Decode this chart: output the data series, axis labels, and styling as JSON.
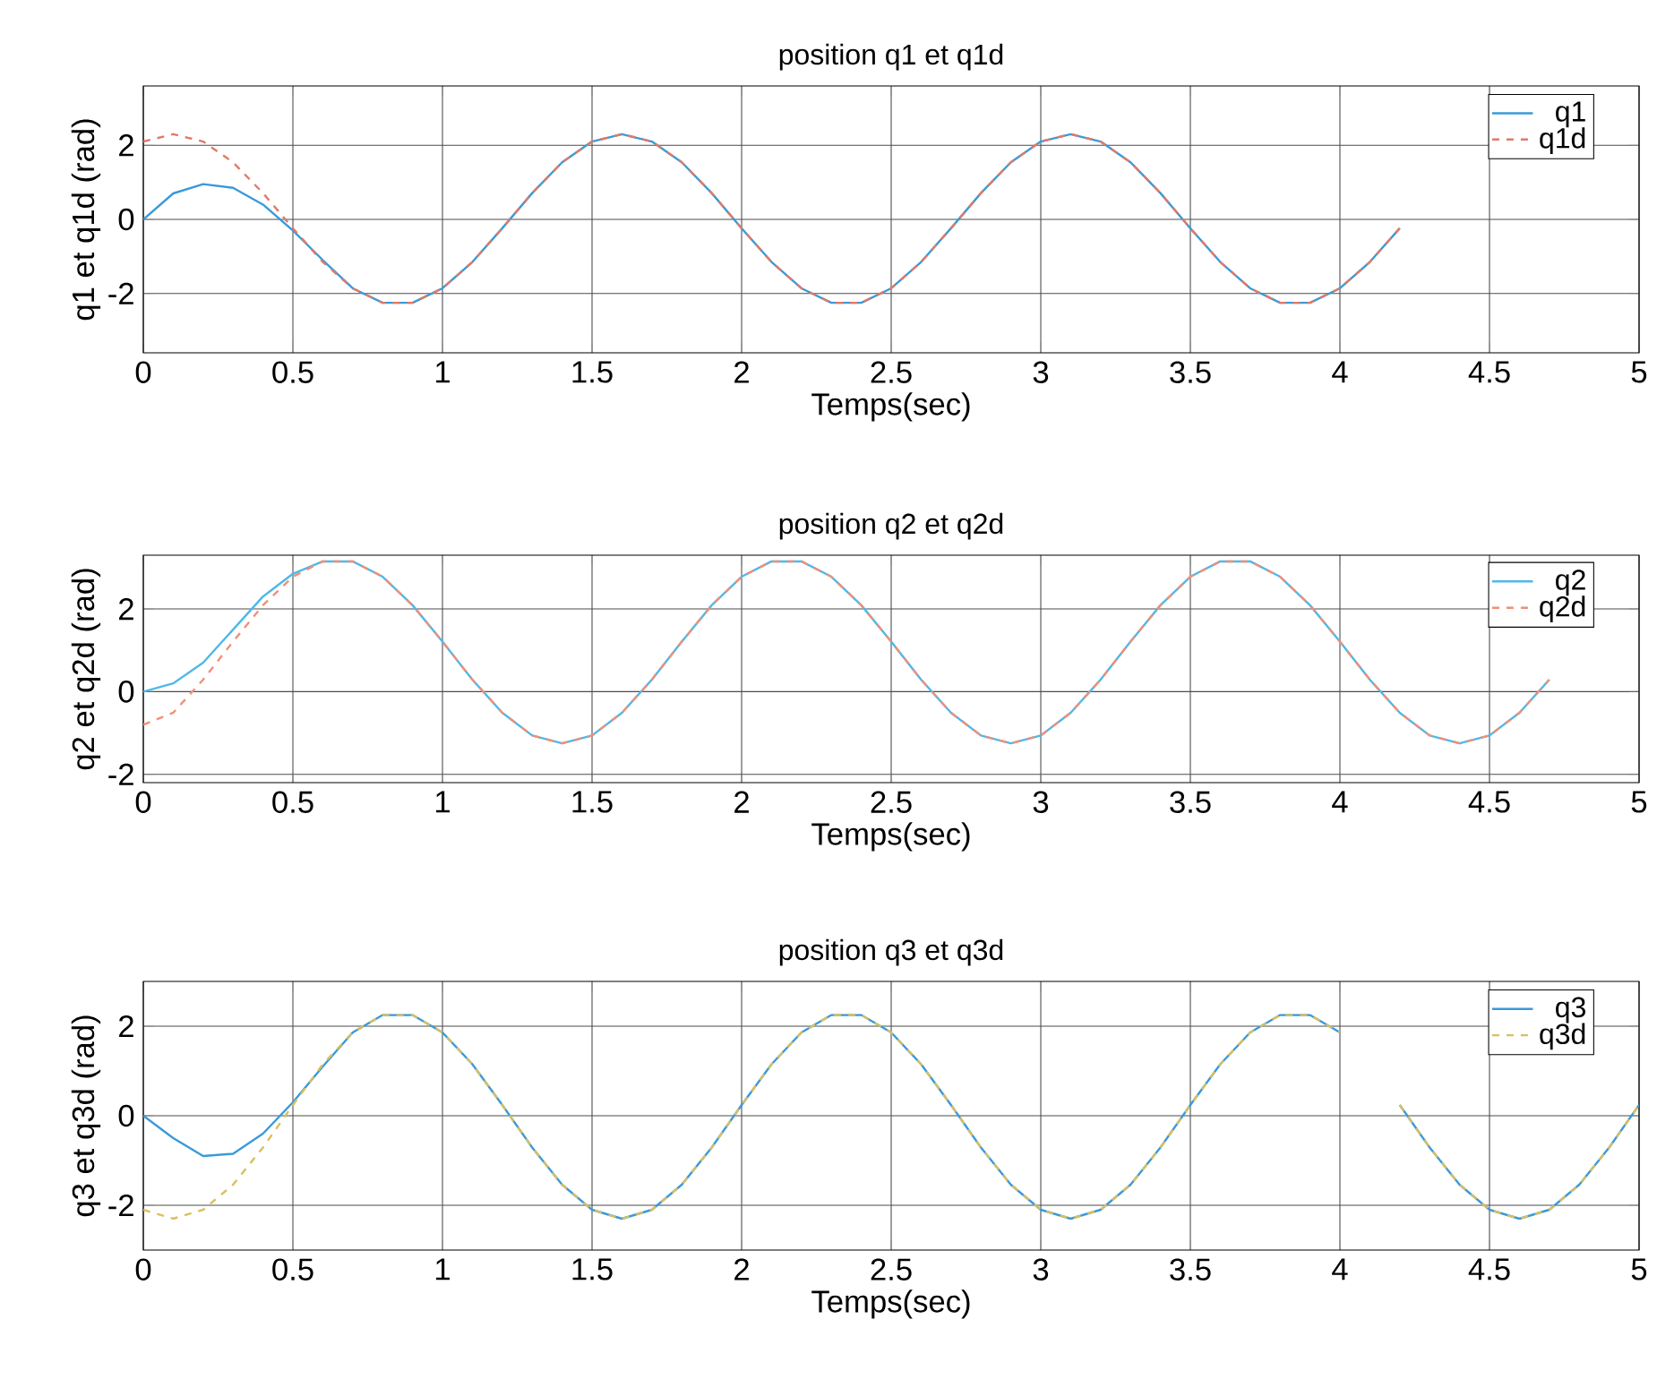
{
  "chart_data": [
    {
      "type": "line",
      "title": "position q1 et q1d",
      "xlabel": "Temps(sec)",
      "ylabel": "q1 et q1d (rad)",
      "xlim": [
        0,
        5
      ],
      "ylim": [
        -3.6,
        3.6
      ],
      "xticks": [
        0,
        0.5,
        1,
        1.5,
        2,
        2.5,
        3,
        3.5,
        4,
        4.5,
        5
      ],
      "yticks": [
        -2,
        0,
        2
      ],
      "grid": true,
      "legend": "top right",
      "x": [
        0,
        0.1,
        0.2,
        0.3,
        0.4,
        0.5,
        0.6,
        0.7,
        0.8,
        0.9,
        1.0,
        1.1,
        1.2,
        1.3,
        1.4,
        1.5,
        1.6,
        1.7,
        1.8,
        1.9,
        2.0,
        2.1,
        2.2,
        2.3,
        2.4,
        2.5,
        2.6,
        2.7,
        2.8,
        2.9,
        3.0,
        3.1,
        3.2,
        3.3,
        3.4,
        3.5,
        3.6,
        3.7,
        3.8,
        3.9,
        4.0,
        4.1,
        4.2
      ],
      "series": [
        {
          "name": "q1",
          "color": "#3a9ad9",
          "line_style": "solid",
          "values": [
            0,
            0.7,
            0.95,
            0.85,
            0.4,
            -0.3,
            -1.1,
            -1.86,
            -2.25,
            -2.25,
            -1.86,
            -1.15,
            -0.24,
            0.71,
            1.54,
            2.1,
            2.3,
            2.1,
            1.54,
            0.71,
            -0.24,
            -1.15,
            -1.86,
            -2.25,
            -2.25,
            -1.86,
            -1.15,
            -0.24,
            0.71,
            1.54,
            2.1,
            2.3,
            2.1,
            1.54,
            0.71,
            -0.24,
            -1.15,
            -1.86,
            -2.25,
            -2.25,
            -1.86,
            -1.15,
            -0.24
          ]
        },
        {
          "name": "q1d",
          "color": "#e07a6a",
          "line_style": "dashed",
          "values": [
            2.1,
            2.3,
            2.1,
            1.54,
            0.71,
            -0.24,
            -1.15,
            -1.86,
            -2.25,
            -2.25,
            -1.86,
            -1.15,
            -0.24,
            0.71,
            1.54,
            2.1,
            2.3,
            2.1,
            1.54,
            0.71,
            -0.24,
            -1.15,
            -1.86,
            -2.25,
            -2.25,
            -1.86,
            -1.15,
            -0.24,
            0.71,
            1.54,
            2.1,
            2.3,
            2.1,
            1.54,
            0.71,
            -0.24,
            -1.15,
            -1.86,
            -2.25,
            -2.25,
            -1.86,
            -1.15,
            -0.24
          ]
        }
      ]
    },
    {
      "type": "line",
      "title": "position q2 et q2d",
      "xlabel": "Temps(sec)",
      "ylabel": "q2 et q2d (rad)",
      "xlim": [
        0,
        5
      ],
      "ylim": [
        -2.2,
        3.3
      ],
      "xticks": [
        0,
        0.5,
        1,
        1.5,
        2,
        2.5,
        3,
        3.5,
        4,
        4.5,
        5
      ],
      "yticks": [
        -2,
        0,
        2
      ],
      "grid": true,
      "legend": "top right",
      "x": [
        0,
        0.1,
        0.2,
        0.3,
        0.4,
        0.5,
        0.6,
        0.7,
        0.8,
        0.9,
        1.0,
        1.1,
        1.2,
        1.3,
        1.4,
        1.5,
        1.6,
        1.7,
        1.8,
        1.9,
        2.0,
        2.1,
        2.2,
        2.3,
        2.4,
        2.5,
        2.6,
        2.7,
        2.8,
        2.9,
        3.0,
        3.1,
        3.2,
        3.3,
        3.4,
        3.5,
        3.6,
        3.7,
        3.8,
        3.9,
        4.0,
        4.1,
        4.2,
        4.3,
        4.4,
        4.5,
        4.6,
        4.7
      ],
      "series": [
        {
          "name": "q2",
          "color": "#4fb8e8",
          "line_style": "solid",
          "values": [
            0,
            0.2,
            0.7,
            1.5,
            2.3,
            2.85,
            3.15,
            3.15,
            2.78,
            2.09,
            1.21,
            0.29,
            -0.51,
            -1.06,
            -1.25,
            -1.06,
            -0.51,
            0.29,
            1.21,
            2.09,
            2.78,
            3.15,
            3.15,
            2.78,
            2.09,
            1.21,
            0.29,
            -0.51,
            -1.06,
            -1.25,
            -1.06,
            -0.51,
            0.29,
            1.21,
            2.09,
            2.78,
            3.15,
            3.15,
            2.78,
            2.09,
            1.21,
            0.29,
            -0.51,
            -1.06,
            -1.25,
            -1.06,
            -0.51,
            0.29
          ]
        },
        {
          "name": "q2d",
          "color": "#f0907a",
          "line_style": "dashed",
          "values": [
            -0.8,
            -0.51,
            0.29,
            1.21,
            2.09,
            2.78,
            3.15,
            3.15,
            2.78,
            2.09,
            1.21,
            0.29,
            -0.51,
            -1.06,
            -1.25,
            -1.06,
            -0.51,
            0.29,
            1.21,
            2.09,
            2.78,
            3.15,
            3.15,
            2.78,
            2.09,
            1.21,
            0.29,
            -0.51,
            -1.06,
            -1.25,
            -1.06,
            -0.51,
            0.29,
            1.21,
            2.09,
            2.78,
            3.15,
            3.15,
            2.78,
            2.09,
            1.21,
            0.29,
            -0.51,
            -1.06,
            -1.25,
            -1.06,
            -0.51,
            0.29
          ]
        }
      ]
    },
    {
      "type": "line",
      "title": "position q3 et q3d",
      "xlabel": "Temps(sec)",
      "ylabel": "q3 et q3d (rad)",
      "xlim": [
        0,
        5
      ],
      "ylim": [
        -3,
        3
      ],
      "xticks": [
        0,
        0.5,
        1,
        1.5,
        2,
        2.5,
        3,
        3.5,
        4,
        4.5,
        5
      ],
      "yticks": [
        -2,
        0,
        2
      ],
      "grid": true,
      "legend": "top right",
      "x": [
        0,
        0.1,
        0.2,
        0.3,
        0.4,
        0.5,
        0.6,
        0.7,
        0.8,
        0.9,
        1.0,
        1.1,
        1.2,
        1.3,
        1.4,
        1.5,
        1.6,
        1.7,
        1.8,
        1.9,
        2.0,
        2.1,
        2.2,
        2.3,
        2.4,
        2.5,
        2.6,
        2.7,
        2.8,
        2.9,
        3.0,
        3.1,
        3.2,
        3.3,
        3.4,
        3.5,
        3.6,
        3.7,
        3.8,
        3.9,
        4.0,
        4.1,
        4.2,
        4.3,
        4.4,
        4.5,
        4.6,
        4.7,
        4.8,
        4.9,
        5.0
      ],
      "series": [
        {
          "name": "q3",
          "color": "#3a9ad9",
          "line_style": "solid",
          "values": [
            0,
            -0.5,
            -0.9,
            -0.85,
            -0.4,
            0.3,
            1.1,
            1.86,
            2.25,
            2.25,
            1.86,
            1.15,
            0.24,
            -0.71,
            -1.54,
            -2.1,
            -2.3,
            -2.1,
            -1.54,
            -0.71,
            0.24,
            1.15,
            1.86,
            2.25,
            2.25,
            1.86,
            1.15,
            0.24,
            -0.71,
            -1.54,
            -2.1,
            -2.3,
            -2.1,
            -1.54,
            -0.71,
            0.24,
            1.15,
            1.86,
            2.25,
            2.25,
            1.86,
            null,
            0.24,
            -0.71,
            -1.54,
            -2.1,
            -2.3,
            -2.1,
            -1.54,
            -0.71,
            0.24
          ]
        },
        {
          "name": "q3d",
          "color": "#d8c060",
          "line_style": "dashed",
          "values": [
            -2.1,
            -2.3,
            -2.1,
            -1.54,
            -0.71,
            0.24,
            1.15,
            1.86,
            2.25,
            2.25,
            1.86,
            1.15,
            0.24,
            -0.71,
            -1.54,
            -2.1,
            -2.3,
            -2.1,
            -1.54,
            -0.71,
            0.24,
            1.15,
            1.86,
            2.25,
            2.25,
            1.86,
            1.15,
            0.24,
            -0.71,
            -1.54,
            -2.1,
            -2.3,
            -2.1,
            -1.54,
            -0.71,
            0.24,
            1.15,
            1.86,
            2.25,
            2.25,
            1.86,
            null,
            0.24,
            -0.71,
            -1.54,
            -2.1,
            -2.3,
            -2.1,
            -1.54,
            -0.71,
            0.24
          ]
        }
      ]
    }
  ]
}
